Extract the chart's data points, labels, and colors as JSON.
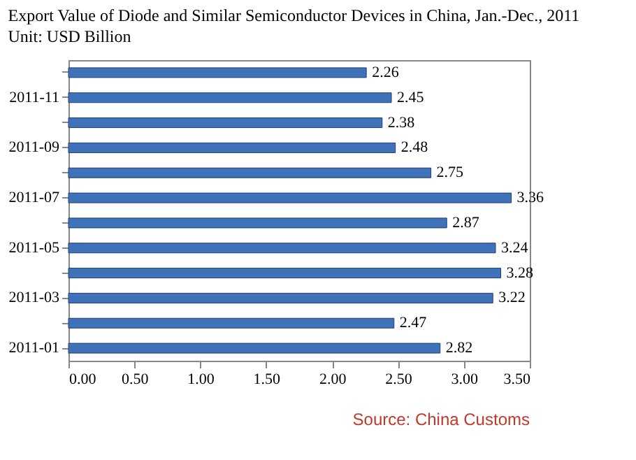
{
  "chart_data": {
    "type": "bar",
    "orientation": "horizontal",
    "title": "Export Value of Diode and Similar Semiconductor Devices in China, Jan.-Dec., 2011",
    "subtitle": "Unit: USD Billion",
    "categories": [
      null,
      "2011-11",
      null,
      "2011-09",
      null,
      "2011-07",
      null,
      "2011-05",
      null,
      "2011-03",
      null,
      "2011-01"
    ],
    "values": [
      2.26,
      2.45,
      2.38,
      2.48,
      2.75,
      3.36,
      2.87,
      3.24,
      3.28,
      3.22,
      2.47,
      2.82
    ],
    "color": "#3f72b8",
    "xlim": [
      0,
      3.5
    ],
    "xticks": [
      {
        "value": 0,
        "label": "0.00"
      },
      {
        "value": 0.5,
        "label": "0.50"
      },
      {
        "value": 1,
        "label": "1.00"
      },
      {
        "value": 1.5,
        "label": "1.50"
      },
      {
        "value": 2,
        "label": "2.00"
      },
      {
        "value": 2.5,
        "label": "2.50"
      },
      {
        "value": 3,
        "label": "3.00"
      },
      {
        "value": 3.5,
        "label": "3.50"
      }
    ],
    "data_labels": true,
    "annotations": [
      "Source:  China Customs"
    ]
  }
}
